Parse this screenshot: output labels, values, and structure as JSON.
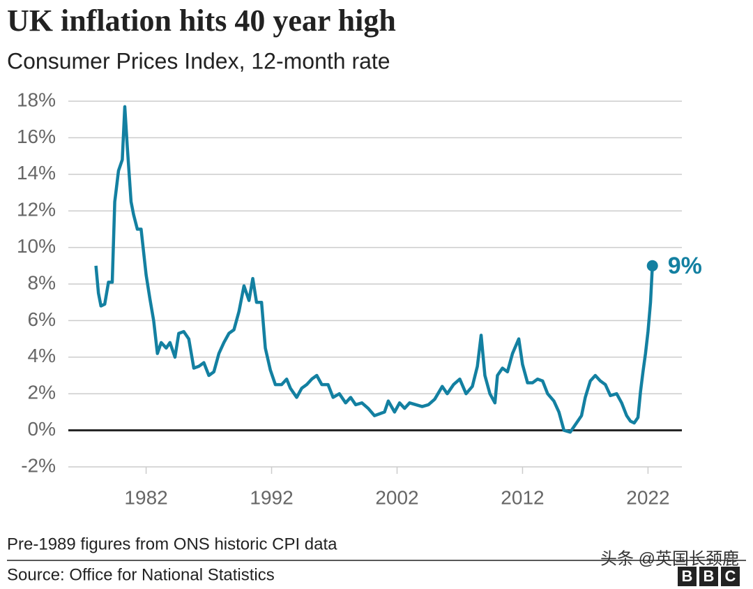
{
  "chart_data": {
    "type": "line",
    "title": "UK inflation hits 40 year high",
    "subtitle": "Consumer Prices Index, 12-month rate",
    "end_label": "9%",
    "note": "Pre-1989 figures from ONS historic CPI data",
    "source": "Source: Office for National Statistics",
    "watermark": "头条 @英国长颈鹿",
    "logo": [
      "B",
      "B",
      "C"
    ],
    "color": "#1380a1",
    "grid": true,
    "xlim": [
      1975.8,
      2024.7
    ],
    "xticks": [
      1982,
      1992,
      2002,
      2012,
      2022
    ],
    "ylim": [
      -2,
      18
    ],
    "yticks": [
      {
        "value": -2,
        "label": "-2%"
      },
      {
        "value": 0,
        "label": "0%"
      },
      {
        "value": 2,
        "label": "2%"
      },
      {
        "value": 4,
        "label": "4%"
      },
      {
        "value": 6,
        "label": "6%"
      },
      {
        "value": 8,
        "label": "8%"
      },
      {
        "value": 10,
        "label": "10%"
      },
      {
        "value": 12,
        "label": "12%"
      },
      {
        "value": 14,
        "label": "14%"
      },
      {
        "value": 16,
        "label": "16%"
      },
      {
        "value": 18,
        "label": "18%"
      }
    ],
    "x": [
      1978.0,
      1978.2,
      1978.4,
      1978.7,
      1979.0,
      1979.3,
      1979.5,
      1979.8,
      1980.1,
      1980.3,
      1980.5,
      1980.8,
      1981.0,
      1981.3,
      1981.6,
      1982.0,
      1982.3,
      1982.6,
      1982.9,
      1983.2,
      1983.6,
      1983.9,
      1984.3,
      1984.6,
      1985.0,
      1985.4,
      1985.8,
      1986.2,
      1986.6,
      1987.0,
      1987.4,
      1987.8,
      1988.2,
      1988.6,
      1989.0,
      1989.4,
      1989.8,
      1990.2,
      1990.5,
      1990.8,
      1991.2,
      1991.5,
      1991.9,
      1992.3,
      1992.8,
      1993.2,
      1993.5,
      1994.0,
      1994.4,
      1994.8,
      1995.2,
      1995.6,
      1996.0,
      1996.5,
      1996.9,
      1997.4,
      1997.9,
      1998.3,
      1998.7,
      1999.2,
      1999.7,
      2000.2,
      2000.6,
      2001.0,
      2001.3,
      2001.8,
      2002.2,
      2002.6,
      2003.0,
      2003.5,
      2004.0,
      2004.5,
      2005.0,
      2005.6,
      2006.0,
      2006.5,
      2007.0,
      2007.5,
      2008.0,
      2008.4,
      2008.7,
      2009.0,
      2009.4,
      2009.8,
      2010.0,
      2010.4,
      2010.8,
      2011.2,
      2011.7,
      2012.0,
      2012.4,
      2012.8,
      2013.2,
      2013.6,
      2014.0,
      2014.5,
      2014.9,
      2015.3,
      2015.8,
      2016.2,
      2016.7,
      2017.0,
      2017.4,
      2017.8,
      2018.2,
      2018.6,
      2019.0,
      2019.5,
      2019.9,
      2020.3,
      2020.6,
      2020.9,
      2021.2,
      2021.4,
      2021.6,
      2021.8,
      2022.0,
      2022.2,
      2022.35
    ],
    "series": [
      {
        "name": "CPI 12-month rate",
        "color": "#1380a1",
        "values": [
          9.0,
          7.5,
          6.8,
          6.9,
          8.1,
          8.1,
          12.5,
          14.2,
          14.8,
          17.7,
          15.5,
          12.5,
          11.8,
          11.0,
          11.0,
          8.5,
          7.2,
          6.0,
          4.2,
          4.8,
          4.5,
          4.8,
          4.0,
          5.3,
          5.4,
          5.0,
          3.4,
          3.5,
          3.7,
          3.0,
          3.2,
          4.2,
          4.8,
          5.3,
          5.5,
          6.5,
          7.9,
          7.1,
          8.3,
          7.0,
          7.0,
          4.5,
          3.3,
          2.5,
          2.5,
          2.8,
          2.3,
          1.8,
          2.3,
          2.5,
          2.8,
          3.0,
          2.5,
          2.5,
          1.8,
          2.0,
          1.5,
          1.8,
          1.4,
          1.5,
          1.2,
          0.8,
          0.9,
          1.0,
          1.6,
          1.0,
          1.5,
          1.2,
          1.5,
          1.4,
          1.3,
          1.4,
          1.7,
          2.4,
          2.0,
          2.5,
          2.8,
          2.0,
          2.4,
          3.5,
          5.2,
          3.0,
          2.0,
          1.5,
          3.0,
          3.4,
          3.2,
          4.2,
          5.0,
          3.6,
          2.6,
          2.6,
          2.8,
          2.7,
          2.0,
          1.6,
          1.0,
          0.0,
          -0.1,
          0.3,
          0.8,
          1.8,
          2.7,
          3.0,
          2.7,
          2.5,
          1.9,
          2.0,
          1.5,
          0.8,
          0.5,
          0.4,
          0.7,
          2.1,
          3.2,
          4.2,
          5.4,
          7.0,
          9.0
        ]
      }
    ]
  }
}
